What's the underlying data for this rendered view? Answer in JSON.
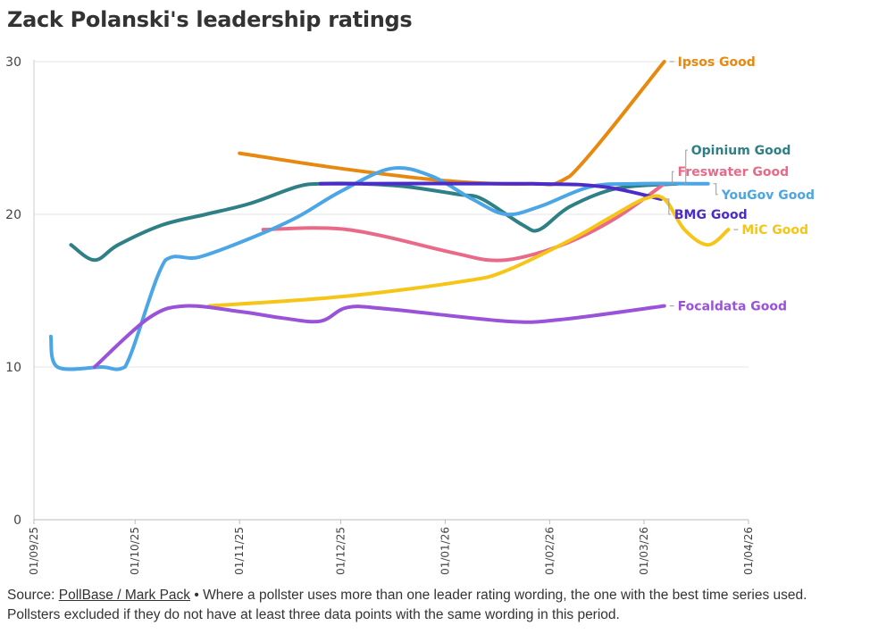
{
  "title": "Zack Polanski's leadership ratings",
  "footer": {
    "prefix": "Source: ",
    "link_text": "PollBase / Mark Pack",
    "text1": " • Where a pollster uses more than one leader rating wording, the one with the best time series used.",
    "text2": "Pollsters excluded if they do not have at least three data points with the same wording in this period."
  },
  "chart_data": {
    "type": "line",
    "title": "Zack Polanski's leadership ratings",
    "xlabel": "",
    "ylabel": "",
    "ylim": [
      0,
      30
    ],
    "yticks": [
      0,
      10,
      20,
      30
    ],
    "xlim": [
      "2025-09-01",
      "2026-04-01"
    ],
    "xticks": [
      {
        "date": "2025-09-01",
        "label": "01/09/25"
      },
      {
        "date": "2025-10-01",
        "label": "01/10/25"
      },
      {
        "date": "2025-11-01",
        "label": "01/11/25"
      },
      {
        "date": "2025-12-01",
        "label": "01/12/25"
      },
      {
        "date": "2026-01-01",
        "label": "01/01/26"
      },
      {
        "date": "2026-02-01",
        "label": "01/02/26"
      },
      {
        "date": "2026-03-01",
        "label": "01/03/26"
      },
      {
        "date": "2026-04-01",
        "label": "01/04/26"
      }
    ],
    "grid": true,
    "legend": "direct-labels-right",
    "series": [
      {
        "name": "Ipsos Good",
        "color": "#E8890F",
        "label_y": 30,
        "points": [
          [
            "2025-11-01",
            24
          ],
          [
            "2025-12-01",
            23
          ],
          [
            "2026-01-01",
            22.2
          ],
          [
            "2026-01-27",
            22
          ],
          [
            "2026-02-07",
            22.5
          ],
          [
            "2026-03-07",
            30
          ]
        ]
      },
      {
        "name": "Opinium Good",
        "color": "#2F7F86",
        "label_y": 24.2,
        "points": [
          [
            "2025-09-12",
            18
          ],
          [
            "2025-09-19",
            17
          ],
          [
            "2025-09-26",
            18
          ],
          [
            "2025-10-09",
            19.3
          ],
          [
            "2025-10-22",
            20
          ],
          [
            "2025-11-04",
            20.7
          ],
          [
            "2025-11-18",
            21.8
          ],
          [
            "2025-11-25",
            22
          ],
          [
            "2025-12-07",
            22
          ],
          [
            "2025-12-21",
            21.8
          ],
          [
            "2026-01-05",
            21.3
          ],
          [
            "2026-01-12",
            21
          ],
          [
            "2026-01-24",
            19.3
          ],
          [
            "2026-01-29",
            19
          ],
          [
            "2026-02-07",
            20.5
          ],
          [
            "2026-02-21",
            21.7
          ],
          [
            "2026-03-11",
            22
          ]
        ]
      },
      {
        "name": "Freswater Good",
        "color": "#E86A88",
        "label_y": 22.8,
        "points": [
          [
            "2025-11-08",
            19
          ],
          [
            "2025-12-03",
            19
          ],
          [
            "2026-01-03",
            17.5
          ],
          [
            "2026-01-14",
            17
          ],
          [
            "2026-01-24",
            17.2
          ],
          [
            "2026-02-07",
            18.2
          ],
          [
            "2026-02-21",
            19.8
          ],
          [
            "2026-03-07",
            22
          ]
        ]
      },
      {
        "name": "YouGov Good",
        "color": "#4CA6E6",
        "label_y": 21.3,
        "points": [
          [
            "2025-09-06",
            12
          ],
          [
            "2025-09-08",
            10
          ],
          [
            "2025-09-21",
            10
          ],
          [
            "2025-09-28",
            10
          ],
          [
            "2025-10-10",
            17
          ],
          [
            "2025-10-20",
            17.2
          ],
          [
            "2025-11-05",
            18.5
          ],
          [
            "2025-11-18",
            19.8
          ],
          [
            "2025-12-01",
            21.5
          ],
          [
            "2025-12-16",
            23
          ],
          [
            "2025-12-28",
            22.5
          ],
          [
            "2026-01-09",
            21
          ],
          [
            "2026-01-19",
            20
          ],
          [
            "2026-01-29",
            20.5
          ],
          [
            "2026-02-13",
            21.8
          ],
          [
            "2026-02-27",
            22
          ],
          [
            "2026-03-20",
            22
          ]
        ]
      },
      {
        "name": "BMG Good",
        "color": "#4C2CC9",
        "label_y": 20,
        "points": [
          [
            "2025-11-25",
            22
          ],
          [
            "2026-01-27",
            22
          ],
          [
            "2026-02-17",
            21.8
          ],
          [
            "2026-03-06",
            21
          ]
        ]
      },
      {
        "name": "MiC Good",
        "color": "#F5C518",
        "label_y": 19,
        "points": [
          [
            "2025-10-23",
            14
          ],
          [
            "2025-12-01",
            14.6
          ],
          [
            "2026-01-06",
            15.6
          ],
          [
            "2026-01-19",
            16.3
          ],
          [
            "2026-02-07",
            18.3
          ],
          [
            "2026-02-19",
            19.8
          ],
          [
            "2026-03-01",
            21
          ],
          [
            "2026-03-07",
            21
          ],
          [
            "2026-03-13",
            19
          ],
          [
            "2026-03-20",
            18
          ],
          [
            "2026-03-26",
            19
          ]
        ]
      },
      {
        "name": "Focaldata Good",
        "color": "#9A52D9",
        "label_y": 14,
        "points": [
          [
            "2025-09-19",
            10
          ],
          [
            "2025-10-05",
            13.2
          ],
          [
            "2025-10-16",
            14
          ],
          [
            "2025-11-02",
            13.6
          ],
          [
            "2025-11-14",
            13.2
          ],
          [
            "2025-11-25",
            13
          ],
          [
            "2025-12-03",
            13.9
          ],
          [
            "2025-12-15",
            13.8
          ],
          [
            "2026-01-19",
            13
          ],
          [
            "2026-02-04",
            13.1
          ],
          [
            "2026-03-07",
            14
          ]
        ]
      }
    ]
  }
}
